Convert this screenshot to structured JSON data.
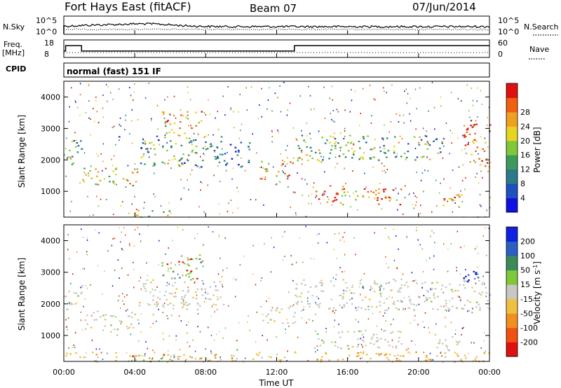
{
  "header": {
    "station": "Fort Hays East (fitACF)",
    "beam": "Beam 07",
    "date": "07/Jun/2014"
  },
  "params": {
    "nsky_label": "N.Sky",
    "nsearch_label": "N.Search",
    "freq_label": "Freq.",
    "freq_unit": "[MHz]",
    "nave_label": "Nave",
    "cpid_label": "CPID",
    "cpid_text": "normal (fast) 151 IF",
    "noise_ticks_left": [
      "10^5",
      "10^0"
    ],
    "noise_ticks_right": [
      "10^5",
      "10^0"
    ],
    "freq_ticks": [
      "18",
      "8"
    ],
    "nave_ticks": [
      "60",
      "0"
    ],
    "freq_steps": [
      {
        "t_hr": 0.0,
        "mhz": 11.0
      },
      {
        "t_hr": 0.1,
        "mhz": 15.5
      },
      {
        "t_hr": 1.0,
        "mhz": 11.0
      },
      {
        "t_hr": 13.0,
        "mhz": 15.5
      },
      {
        "t_hr": 24.0,
        "mhz": 15.5
      }
    ]
  },
  "chart_data": [
    {
      "type": "heatmap",
      "name": "power",
      "ylabel": "Slant Range [km]",
      "ylim": [
        180,
        4500
      ],
      "yticks": [
        "1000",
        "2000",
        "3000",
        "4000"
      ],
      "xlim_hr": [
        0,
        24
      ],
      "colorbar": {
        "label": "Power [dB]",
        "ticks": [
          "4",
          "8",
          "12",
          "16",
          "20",
          "24",
          "28"
        ],
        "colors": [
          "#1010e0",
          "#2050c0",
          "#2a7a8a",
          "#3c9a5a",
          "#7fc83a",
          "#e6d420",
          "#f0a020",
          "#f06010",
          "#e01010"
        ]
      },
      "echo_regions": [
        {
          "t0": 0.0,
          "t1": 1.0,
          "r0": 1800,
          "r1": 2700,
          "level": 0.45
        },
        {
          "t0": 1.0,
          "t1": 4.2,
          "r0": 1200,
          "r1": 1800,
          "level": 0.65
        },
        {
          "t0": 4.2,
          "t1": 9.0,
          "r0": 1800,
          "r1": 2800,
          "level": 0.4
        },
        {
          "t0": 5.5,
          "t1": 7.8,
          "r0": 2800,
          "r1": 3600,
          "level": 0.7
        },
        {
          "t0": 3.8,
          "t1": 6.0,
          "r0": 180,
          "r1": 450,
          "level": 0.5
        },
        {
          "t0": 9.0,
          "t1": 10.5,
          "r0": 1800,
          "r1": 2600,
          "level": 0.3
        },
        {
          "t0": 11.0,
          "t1": 13.0,
          "r0": 1400,
          "r1": 2000,
          "level": 0.75
        },
        {
          "t0": 13.0,
          "t1": 15.0,
          "r0": 1900,
          "r1": 2800,
          "level": 0.5
        },
        {
          "t0": 14.0,
          "t1": 19.0,
          "r0": 600,
          "r1": 1200,
          "level": 0.8
        },
        {
          "t0": 15.0,
          "t1": 21.5,
          "r0": 2000,
          "r1": 2800,
          "level": 0.45
        },
        {
          "t0": 21.0,
          "t1": 22.5,
          "r0": 500,
          "r1": 1000,
          "level": 0.75
        },
        {
          "t0": 22.5,
          "t1": 24.0,
          "r0": 1800,
          "r1": 3300,
          "level": 0.85
        }
      ]
    },
    {
      "type": "heatmap",
      "name": "velocity",
      "ylabel": "Slant Range [km]",
      "xlabel": "Time UT",
      "ylim": [
        180,
        4500
      ],
      "yticks": [
        "1000",
        "2000",
        "3000",
        "4000"
      ],
      "xticks": [
        "00:00",
        "04:00",
        "08:00",
        "12:00",
        "16:00",
        "20:00",
        "00:00"
      ],
      "xlim_hr": [
        0,
        24
      ],
      "colorbar": {
        "label": "Velocity [m s^-1]",
        "ticks": [
          "200",
          "100",
          "50",
          "15",
          "-15",
          "-50",
          "-100",
          "-200"
        ],
        "colors": [
          "#1020e0",
          "#2a60c0",
          "#3c8a5a",
          "#7fc83a",
          "#c8c8c0",
          "#f0c040",
          "#f09020",
          "#f05010",
          "#e01010"
        ]
      },
      "echo_regions": [
        {
          "t0": 0.0,
          "t1": 1.0,
          "r0": 1800,
          "r1": 2700,
          "class": "ground"
        },
        {
          "t0": 1.0,
          "t1": 4.2,
          "r0": 1200,
          "r1": 1800,
          "class": "ground"
        },
        {
          "t0": 4.2,
          "t1": 9.0,
          "r0": 1800,
          "r1": 2800,
          "class": "ground"
        },
        {
          "t0": 5.5,
          "t1": 7.8,
          "r0": 2800,
          "r1": 3600,
          "class": "positive"
        },
        {
          "t0": 3.8,
          "t1": 6.0,
          "r0": 180,
          "r1": 450,
          "class": "positive"
        },
        {
          "t0": 11.0,
          "t1": 13.0,
          "r0": 1400,
          "r1": 2000,
          "class": "ground"
        },
        {
          "t0": 13.0,
          "t1": 24.0,
          "r0": 1800,
          "r1": 2800,
          "class": "ground"
        },
        {
          "t0": 14.0,
          "t1": 19.0,
          "r0": 600,
          "r1": 1200,
          "class": "ground"
        },
        {
          "t0": 21.0,
          "t1": 22.5,
          "r0": 500,
          "r1": 1000,
          "class": "ground"
        },
        {
          "t0": 22.5,
          "t1": 23.5,
          "r0": 2700,
          "r1": 3300,
          "class": "high_positive"
        },
        {
          "t0": 0.0,
          "t1": 24.0,
          "r0": 180,
          "r1": 500,
          "class": "negative"
        }
      ]
    }
  ]
}
